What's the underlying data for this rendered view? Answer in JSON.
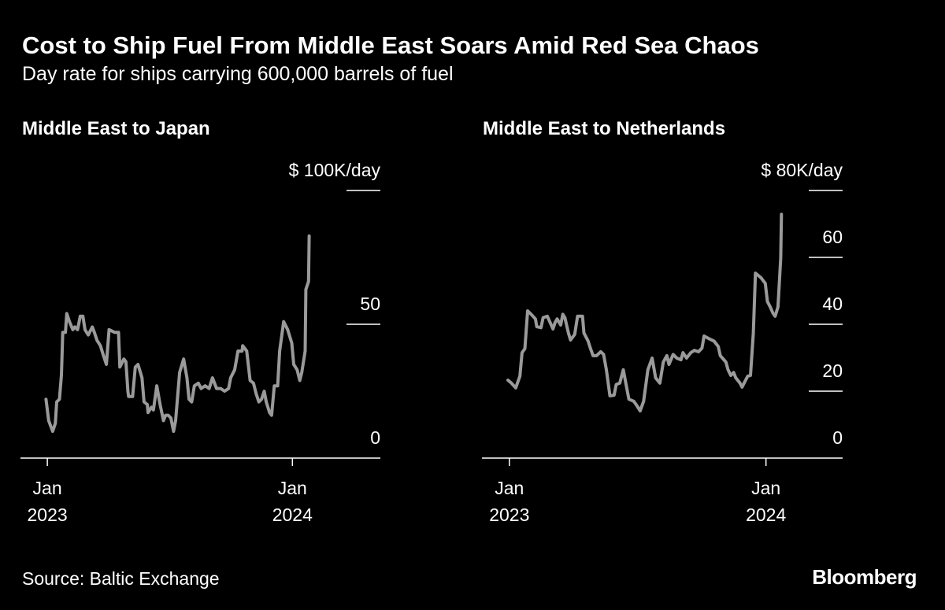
{
  "title": "Cost to Ship Fuel From Middle East Soars Amid Red Sea Chaos",
  "subtitle": "Day rate for ships carrying 600,000 barrels of fuel",
  "source": "Source: Baltic Exchange",
  "logo": "Bloomberg",
  "colors": {
    "background": "#000000",
    "line": "#9a9a9a",
    "text": "#ffffff"
  },
  "chart_data": [
    {
      "type": "line",
      "title": "Middle East to Japan",
      "unit_label": "$ 100K/day",
      "ylim": [
        0,
        100
      ],
      "yticks": [
        0,
        50,
        100
      ],
      "ytick_labels": [
        "0",
        "50",
        "$ 100K/day"
      ],
      "xlim": [
        "2022-11-22",
        "2024-05-11"
      ],
      "xticks": [
        {
          "date": "2023-01-01",
          "label1": "Jan",
          "label2": "2023"
        },
        {
          "date": "2024-01-01",
          "label1": "Jan",
          "label2": "2024"
        }
      ],
      "grid": false,
      "x": [
        "2022-12-30",
        "2023-01-03",
        "2023-01-09",
        "2023-01-13",
        "2023-01-15",
        "2023-01-19",
        "2023-01-22",
        "2023-01-24",
        "2023-01-28",
        "2023-01-30",
        "2023-02-03",
        "2023-02-08",
        "2023-02-11",
        "2023-02-15",
        "2023-02-19",
        "2023-02-23",
        "2023-02-26",
        "2023-03-03",
        "2023-03-09",
        "2023-03-12",
        "2023-03-16",
        "2023-03-21",
        "2023-03-26",
        "2023-03-30",
        "2023-04-03",
        "2023-04-11",
        "2023-04-17",
        "2023-04-19",
        "2023-04-25",
        "2023-04-28",
        "2023-05-01",
        "2023-05-02",
        "2023-05-08",
        "2023-05-12",
        "2023-05-16",
        "2023-05-22",
        "2023-05-25",
        "2023-05-30",
        "2023-05-31",
        "2023-06-05",
        "2023-06-08",
        "2023-06-13",
        "2023-06-18",
        "2023-06-23",
        "2023-06-26",
        "2023-06-30",
        "2023-07-04",
        "2023-07-08",
        "2023-07-11",
        "2023-07-17",
        "2023-07-23",
        "2023-07-28",
        "2023-07-31",
        "2023-08-04",
        "2023-08-08",
        "2023-08-14",
        "2023-08-18",
        "2023-08-24",
        "2023-08-30",
        "2023-09-04",
        "2023-09-10",
        "2023-09-16",
        "2023-09-22",
        "2023-09-28",
        "2023-10-01",
        "2023-10-07",
        "2023-10-12",
        "2023-10-18",
        "2023-10-19",
        "2023-10-25",
        "2023-10-30",
        "2023-11-04",
        "2023-11-08",
        "2023-11-12",
        "2023-11-16",
        "2023-11-20",
        "2023-11-23",
        "2023-11-28",
        "2023-12-01",
        "2023-12-05",
        "2023-12-10",
        "2023-12-13",
        "2023-12-19",
        "2023-12-25",
        "2023-12-31",
        "2024-01-03",
        "2024-01-08",
        "2024-01-12",
        "2024-01-15",
        "2024-01-20",
        "2024-01-21",
        "2024-01-25",
        "2024-01-26"
      ],
      "y": [
        22,
        14,
        10,
        13,
        21,
        22,
        31,
        47,
        47,
        54,
        51,
        48,
        49,
        48,
        53,
        53,
        48,
        46,
        49,
        47,
        44,
        42,
        38,
        35,
        48,
        47,
        47,
        34,
        37,
        36,
        25,
        23,
        23,
        34,
        35,
        30,
        21,
        20,
        17,
        19,
        18,
        27,
        20,
        14,
        16,
        16,
        15,
        10,
        14,
        32,
        37,
        30,
        22,
        21,
        27,
        28,
        26,
        27,
        26,
        30,
        26,
        26,
        25,
        26,
        30,
        33,
        40,
        40,
        42,
        40,
        29,
        28,
        24,
        21,
        22,
        25,
        21,
        17,
        16,
        27,
        27,
        40,
        51,
        48,
        43,
        35,
        33,
        29,
        32,
        40,
        63,
        66,
        83
      ]
    },
    {
      "type": "line",
      "title": "Middle East to Netherlands",
      "unit_label": "$ 80K/day",
      "ylim": [
        0,
        80
      ],
      "yticks": [
        0,
        20,
        40,
        60,
        80
      ],
      "ytick_labels": [
        "0",
        "20",
        "40",
        "60",
        "$ 80K/day"
      ],
      "xlim": [
        "2022-11-23",
        "2024-04-19"
      ],
      "xticks": [
        {
          "date": "2023-01-01",
          "label1": "Jan",
          "label2": "2023"
        },
        {
          "date": "2024-01-01",
          "label1": "Jan",
          "label2": "2024"
        }
      ],
      "grid": false,
      "x": [
        "2022-12-30",
        "2023-01-04",
        "2023-01-10",
        "2023-01-16",
        "2023-01-19",
        "2023-01-23",
        "2023-01-27",
        "2023-02-01",
        "2023-02-07",
        "2023-02-09",
        "2023-02-15",
        "2023-02-18",
        "2023-02-24",
        "2023-02-27",
        "2023-03-04",
        "2023-03-07",
        "2023-03-10",
        "2023-03-15",
        "2023-03-18",
        "2023-03-21",
        "2023-03-26",
        "2023-03-29",
        "2023-04-04",
        "2023-04-08",
        "2023-04-15",
        "2023-04-17",
        "2023-04-23",
        "2023-04-26",
        "2023-04-30",
        "2023-05-05",
        "2023-05-11",
        "2023-05-15",
        "2023-05-19",
        "2023-05-24",
        "2023-05-30",
        "2023-06-02",
        "2023-06-07",
        "2023-06-12",
        "2023-06-16",
        "2023-06-20",
        "2023-06-27",
        "2023-07-01",
        "2023-07-06",
        "2023-07-11",
        "2023-07-17",
        "2023-07-23",
        "2023-07-28",
        "2023-08-03",
        "2023-08-08",
        "2023-08-13",
        "2023-08-16",
        "2023-08-22",
        "2023-08-27",
        "2023-09-02",
        "2023-09-05",
        "2023-09-10",
        "2023-09-16",
        "2023-09-21",
        "2023-09-27",
        "2023-10-02",
        "2023-10-05",
        "2023-10-11",
        "2023-10-19",
        "2023-10-25",
        "2023-10-28",
        "2023-11-05",
        "2023-11-08",
        "2023-11-12",
        "2023-11-16",
        "2023-11-19",
        "2023-11-25",
        "2023-11-28",
        "2023-12-03",
        "2023-12-06",
        "2023-12-10",
        "2023-12-14",
        "2023-12-17",
        "2023-12-25",
        "2023-12-31",
        "2024-01-03",
        "2024-01-07",
        "2024-01-11",
        "2024-01-14",
        "2024-01-18",
        "2024-01-22",
        "2024-01-23"
      ],
      "y": [
        23.3,
        22.4,
        21,
        24.5,
        31.5,
        32.7,
        44,
        43,
        41.6,
        39.3,
        39,
        42,
        42.4,
        41,
        38.6,
        40.5,
        41.6,
        39.8,
        43,
        42,
        37.4,
        35.3,
        37,
        42.4,
        42.4,
        37.4,
        35,
        33,
        30.6,
        30.6,
        31.8,
        31,
        26.4,
        18.6,
        18.8,
        22,
        22.4,
        26.4,
        22,
        17.6,
        17,
        15.8,
        14.1,
        17,
        26.4,
        29.9,
        24,
        22.4,
        28.7,
        30.6,
        28,
        31,
        29.9,
        29.4,
        31.5,
        29.9,
        31.5,
        32.2,
        31.8,
        32.9,
        36.5,
        35.8,
        35,
        33.4,
        30.6,
        28.7,
        26.4,
        24.7,
        25.6,
        24,
        22.4,
        21.2,
        23.3,
        24.5,
        24.7,
        37.4,
        55.3,
        53.9,
        52.2,
        46.8,
        45.2,
        43.3,
        42.4,
        45.2,
        59.8,
        72.9
      ]
    }
  ]
}
